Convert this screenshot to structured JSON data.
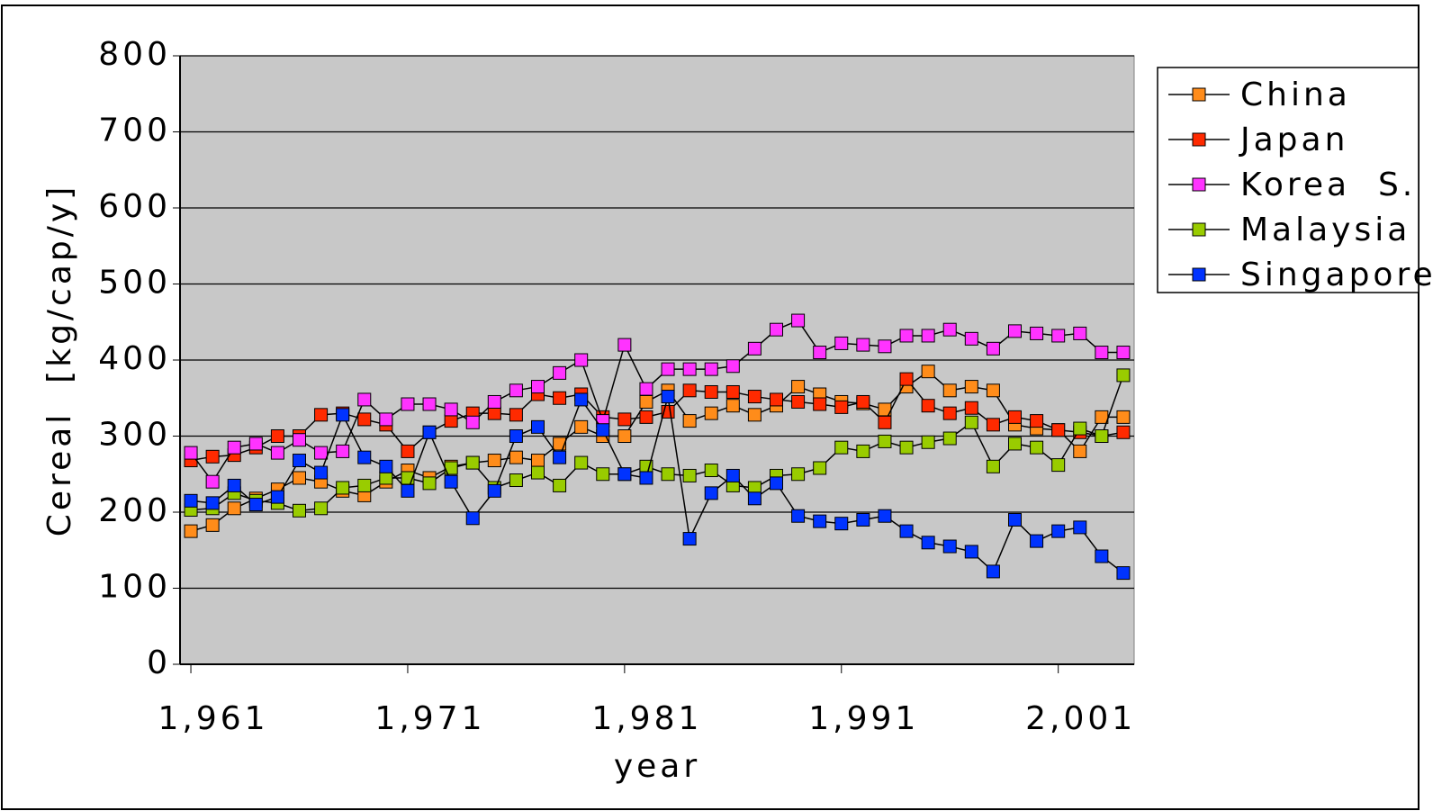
{
  "chart_data": {
    "type": "line",
    "x_label": "year",
    "y_label": "Cereal  [kg/cap/y]",
    "x": [
      1961,
      1962,
      1963,
      1964,
      1965,
      1966,
      1967,
      1968,
      1969,
      1970,
      1971,
      1972,
      1973,
      1974,
      1975,
      1976,
      1977,
      1978,
      1979,
      1980,
      1981,
      1982,
      1983,
      1984,
      1985,
      1986,
      1987,
      1988,
      1989,
      1990,
      1991,
      1992,
      1993,
      1994,
      1995,
      1996,
      1997,
      1998,
      1999,
      2000,
      2001,
      2002,
      2003,
      2004
    ],
    "xlim": [
      1960.5,
      2004.5
    ],
    "xticks": [
      {
        "value": 1961,
        "label": "1,961"
      },
      {
        "value": 1971,
        "label": "1,971"
      },
      {
        "value": 1981,
        "label": "1,981"
      },
      {
        "value": 1991,
        "label": "1,991"
      },
      {
        "value": 2001,
        "label": "2,001"
      }
    ],
    "ylim": [
      0,
      800
    ],
    "yticks": [
      0,
      100,
      200,
      300,
      400,
      500,
      600,
      700,
      800
    ],
    "grid": true,
    "legend": "right",
    "series": [
      {
        "name": "China",
        "color": "#ff8c1a",
        "values": [
          175,
          183,
          205,
          218,
          230,
          245,
          240,
          228,
          222,
          240,
          255,
          245,
          260,
          265,
          268,
          272,
          268,
          290,
          312,
          300,
          300,
          345,
          360,
          320,
          330,
          340,
          328,
          340,
          365,
          355,
          345,
          343,
          335,
          365,
          385,
          360,
          365,
          360,
          315,
          310,
          308,
          280,
          325,
          325
        ]
      },
      {
        "name": "Japan",
        "color": "#ff2a00",
        "values": [
          268,
          273,
          275,
          285,
          300,
          300,
          328,
          330,
          322,
          315,
          280,
          305,
          320,
          330,
          330,
          328,
          355,
          350,
          355,
          325,
          322,
          325,
          332,
          360,
          358,
          358,
          352,
          348,
          345,
          342,
          338,
          345,
          318,
          375,
          340,
          330,
          337,
          315,
          325,
          320,
          308,
          305,
          300,
          305
        ]
      },
      {
        "name": "Korea  S.",
        "color": "#ff33ff",
        "values": [
          278,
          240,
          285,
          290,
          278,
          295,
          278,
          280,
          348,
          322,
          342,
          342,
          335,
          318,
          345,
          360,
          365,
          383,
          400,
          320,
          420,
          362,
          388,
          388,
          388,
          392,
          415,
          440,
          452,
          410,
          422,
          420,
          418,
          432,
          432,
          440,
          428,
          415,
          438,
          435,
          432,
          435,
          410,
          410
        ]
      },
      {
        "name": "Malaysia",
        "color": "#99cc00",
        "values": [
          203,
          205,
          225,
          215,
          212,
          202,
          205,
          232,
          235,
          245,
          245,
          238,
          258,
          265,
          232,
          242,
          252,
          235,
          265,
          250,
          250,
          260,
          250,
          248,
          255,
          235,
          232,
          248,
          250,
          258,
          285,
          280,
          293,
          285,
          292,
          297,
          318,
          260,
          290,
          285,
          262,
          310,
          300,
          380
        ]
      },
      {
        "name": "Singapore",
        "color": "#0033ff",
        "values": [
          215,
          212,
          235,
          210,
          220,
          268,
          252,
          328,
          272,
          260,
          228,
          305,
          240,
          192,
          228,
          300,
          312,
          272,
          348,
          308,
          250,
          245,
          352,
          165,
          225,
          248,
          218,
          238,
          195,
          188,
          185,
          190,
          195,
          175,
          160,
          155,
          148,
          122,
          190,
          162,
          175,
          180,
          142,
          120
        ]
      }
    ]
  }
}
